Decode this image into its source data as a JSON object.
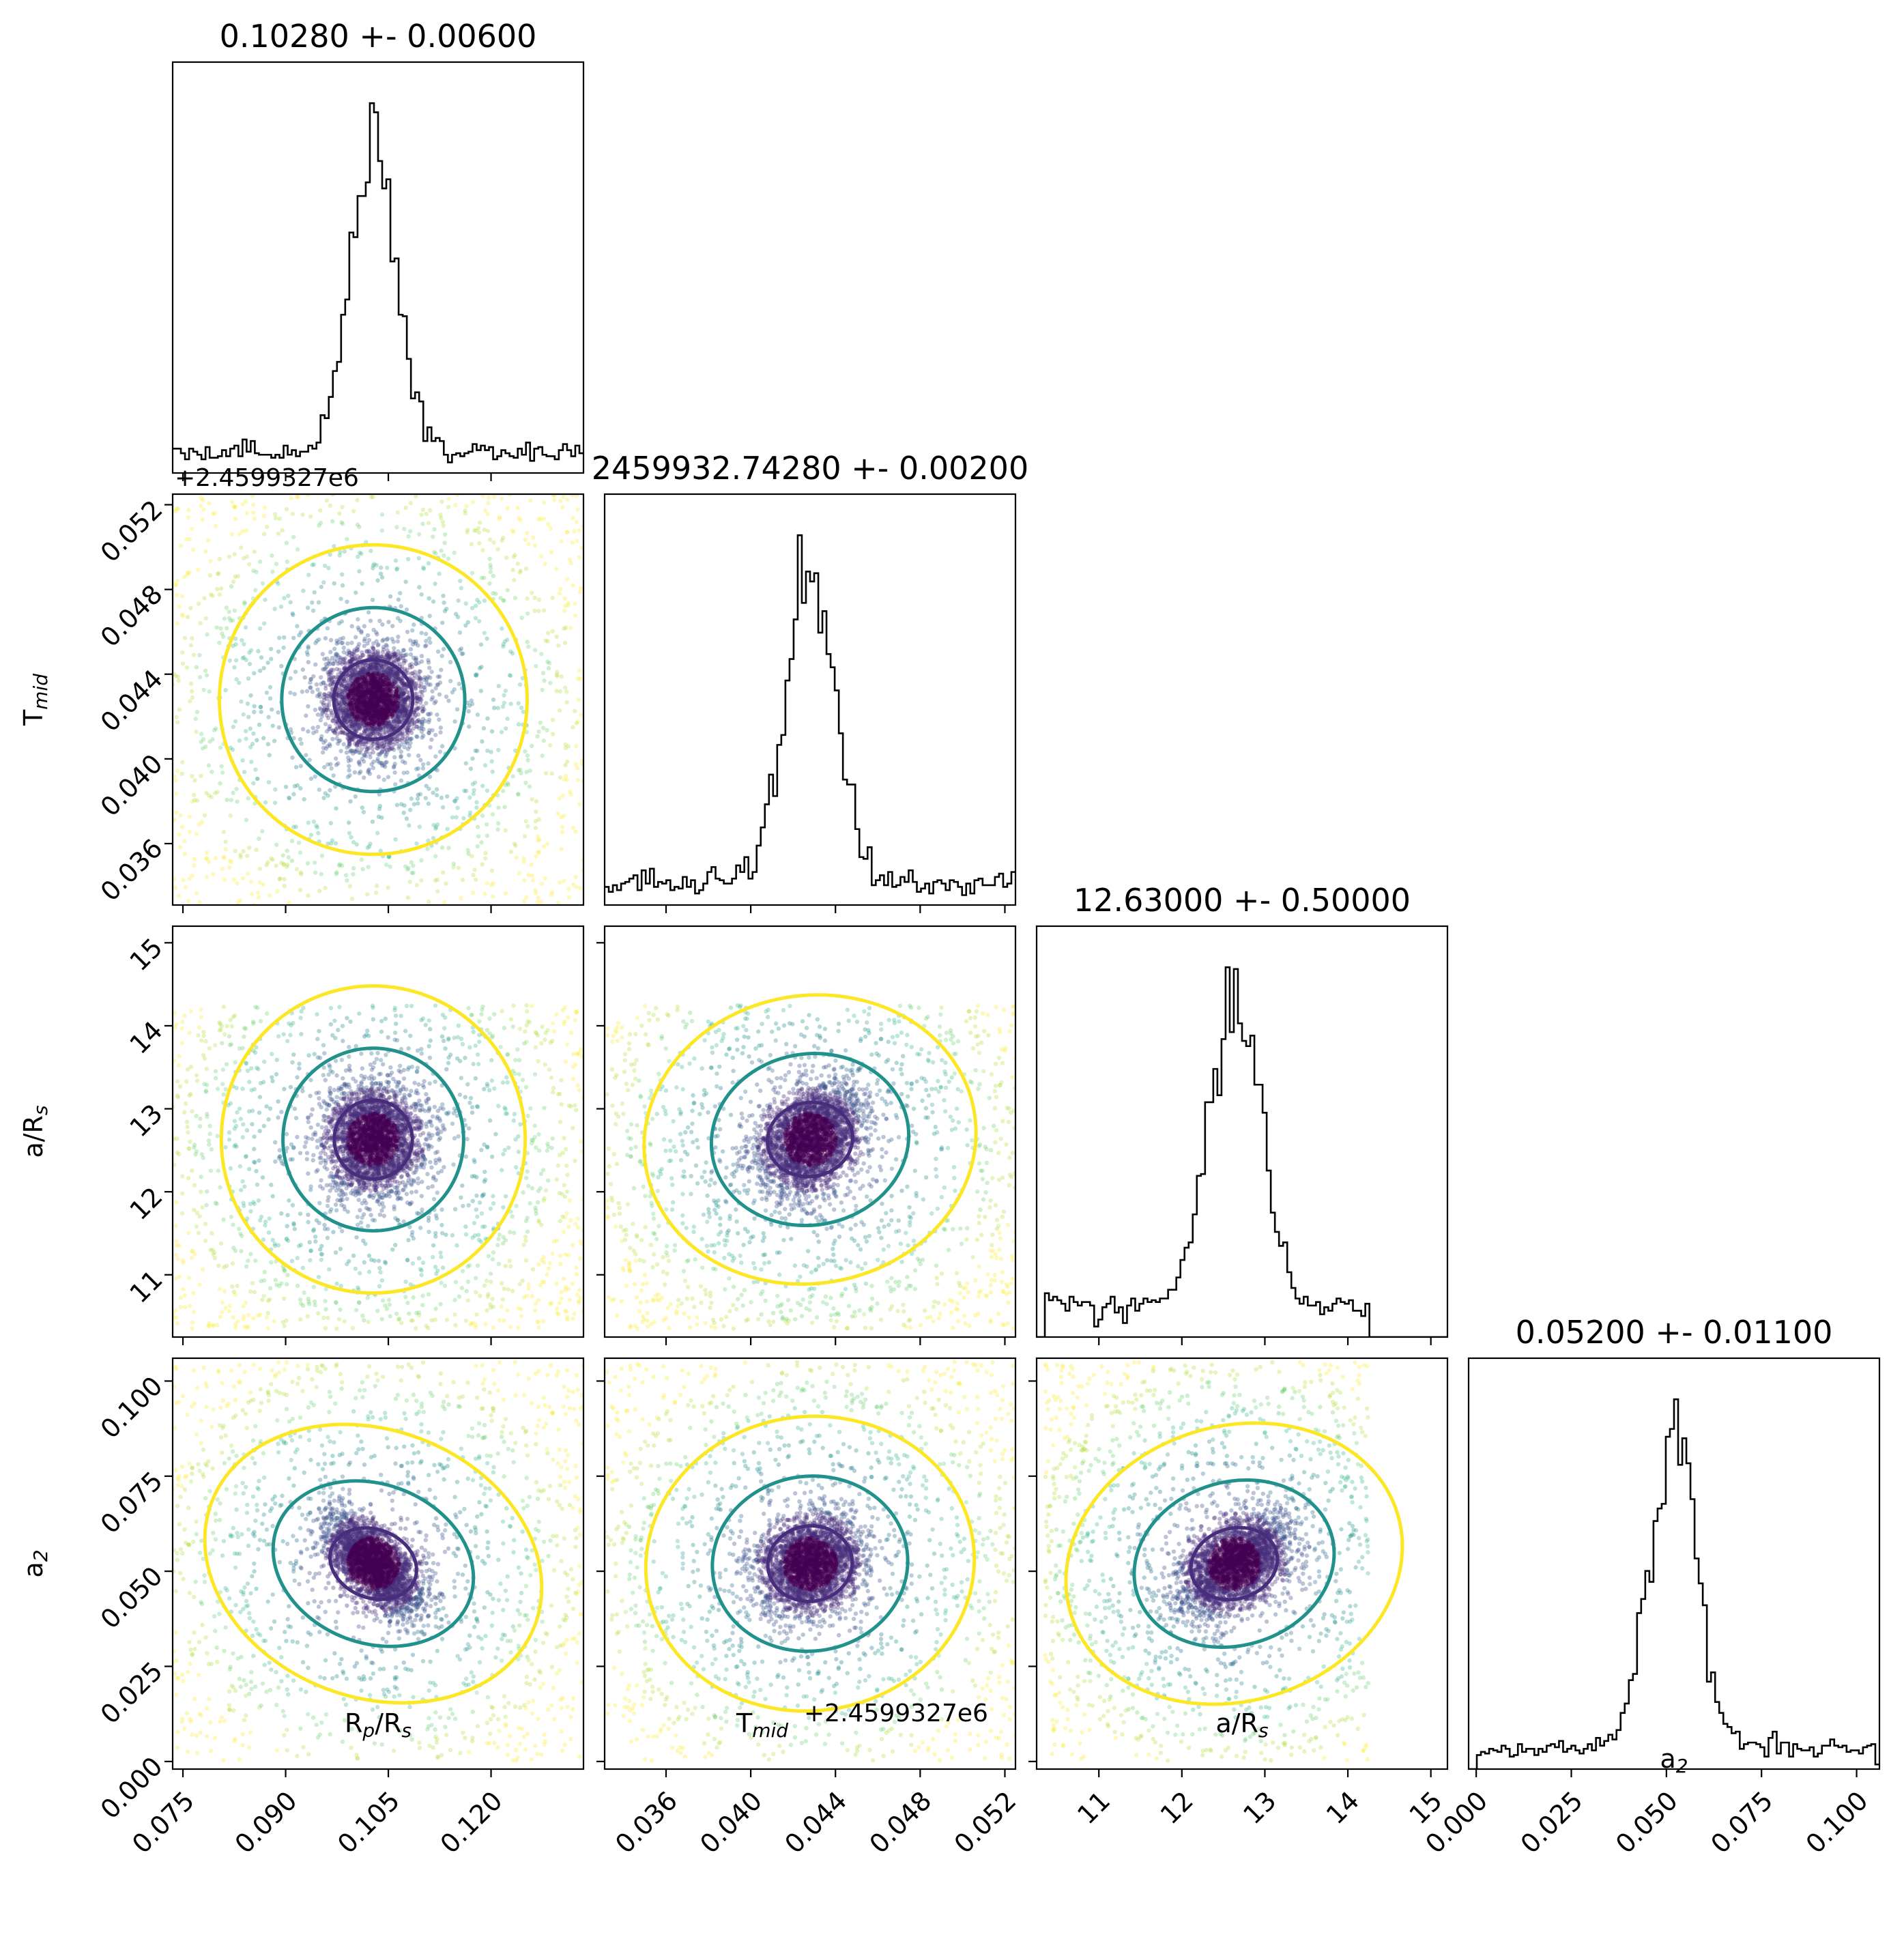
{
  "chart_data": {
    "type": "corner",
    "parameters": [
      {
        "key": "rp",
        "label": "R",
        "sub": "p",
        "label_tail": "/R",
        "sub2": "s",
        "median": 0.1028,
        "err": 0.006,
        "range": [
          0.0735,
          0.1335
        ],
        "ticks": [
          0.075,
          0.09,
          0.105,
          0.12
        ],
        "tick_labels": [
          "0.075",
          "0.090",
          "0.105",
          "0.120"
        ],
        "title": "0.10280 +- 0.00600"
      },
      {
        "key": "tmid",
        "label": "T",
        "sub": "mid",
        "label_tail": "",
        "sub2": "",
        "median": 0.0428,
        "err": 0.002,
        "range": [
          0.0331,
          0.0525
        ],
        "ticks": [
          0.036,
          0.04,
          0.044,
          0.048,
          0.052
        ],
        "tick_labels": [
          "0.036",
          "0.040",
          "0.044",
          "0.048",
          "0.052"
        ],
        "offset_label": "+2.4599327e6",
        "title": "2459932.74280 +- 0.00200"
      },
      {
        "key": "ars",
        "label": "a/R",
        "sub": "s",
        "label_tail": "",
        "sub2": "",
        "median": 12.63,
        "err": 0.5,
        "range": [
          10.25,
          15.2
        ],
        "ticks": [
          11,
          12,
          13,
          14,
          15
        ],
        "tick_labels": [
          "11",
          "12",
          "13",
          "14",
          "15"
        ],
        "title": "12.63000 +- 0.50000"
      },
      {
        "key": "a2",
        "label": "a",
        "sub": "2",
        "label_tail": "",
        "sub2": "",
        "median": 0.052,
        "err": 0.011,
        "range": [
          -0.002,
          0.106
        ],
        "ticks": [
          0.0,
          0.025,
          0.05,
          0.075,
          0.1
        ],
        "tick_labels": [
          "0.000",
          "0.025",
          "0.050",
          "0.075",
          "0.100"
        ],
        "title": "0.05200 +- 0.01100"
      }
    ],
    "row_offset_label": "+2.4599327e6",
    "contour_colors": [
      "#472d7b",
      "#21918c",
      "#fde725"
    ],
    "scatter_colormap": "viridis",
    "histogram_color": "#000000"
  }
}
